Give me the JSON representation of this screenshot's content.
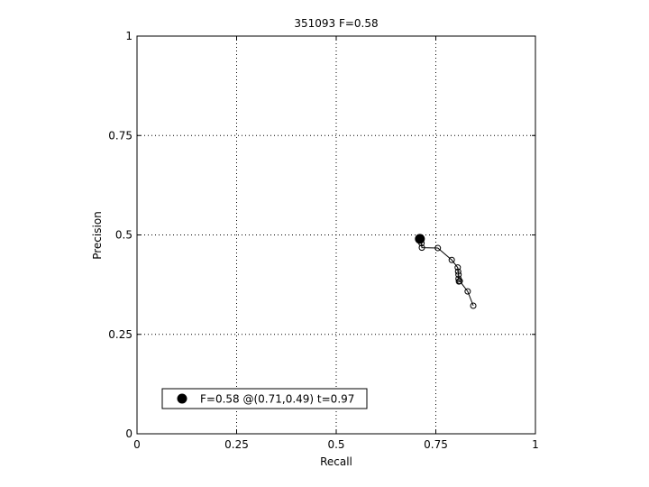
{
  "chart_data": {
    "type": "line",
    "title": "351093 F=0.58",
    "xlabel": "Recall",
    "ylabel": "Precision",
    "xlim": [
      0,
      1
    ],
    "ylim": [
      0,
      1
    ],
    "grid": true,
    "grid_style": "dotted",
    "x_ticks": [
      0,
      0.25,
      0.5,
      0.75,
      1
    ],
    "x_tick_labels": [
      "0",
      "0.25",
      "0.5",
      "0.75",
      "1"
    ],
    "y_ticks": [
      0,
      0.25,
      0.5,
      0.75,
      1
    ],
    "y_tick_labels": [
      "0",
      "0.25",
      "0.5",
      "0.75",
      "1"
    ],
    "series": [
      {
        "marker": "open-circle",
        "color": "#000000",
        "x": [
          0.71,
          0.714,
          0.715,
          0.755,
          0.79,
          0.805,
          0.806,
          0.807,
          0.807,
          0.808,
          0.81,
          0.83,
          0.844
        ],
        "y": [
          0.49,
          0.479,
          0.468,
          0.467,
          0.437,
          0.418,
          0.408,
          0.4,
          0.39,
          0.383,
          0.384,
          0.358,
          0.322
        ]
      }
    ],
    "best_point": {
      "x": 0.71,
      "y": 0.49,
      "marker": "filled-circle",
      "color": "#000000"
    },
    "legend": {
      "position": "bottom-left",
      "entries": [
        {
          "label": "F=0.58 @(0.71,0.49) t=0.97",
          "marker": "filled-circle"
        }
      ]
    }
  }
}
